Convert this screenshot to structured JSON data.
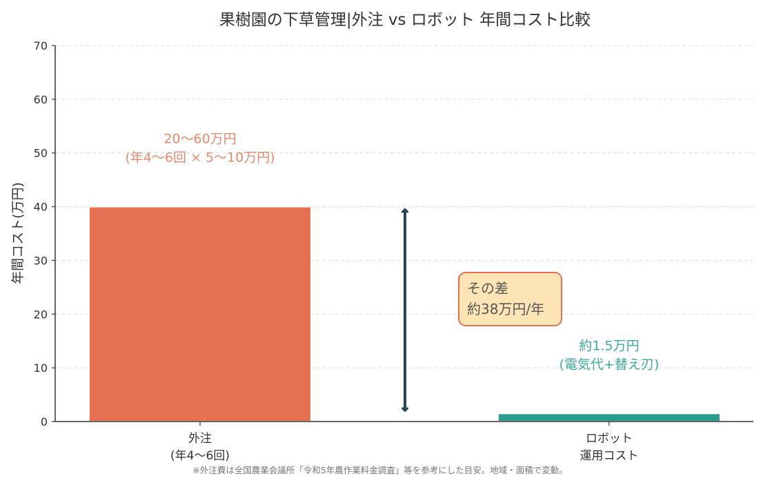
{
  "chart_data": {
    "type": "bar",
    "title": "果樹園の下草管理|外注 vs ロボット 年間コスト比較",
    "ylabel": "年間コスト(万円)",
    "xlabel": "",
    "ylim": [
      0,
      70
    ],
    "yticks": [
      0,
      10,
      20,
      30,
      40,
      50,
      60,
      70
    ],
    "grid": true,
    "categories": [
      [
        "外注",
        "(年4〜6回)"
      ],
      [
        "ロボット",
        "運用コスト"
      ]
    ],
    "values": [
      40,
      1.5
    ],
    "colors": [
      "#e57052",
      "#2a9d8f"
    ],
    "bar_annotations": [
      [
        "20〜60万円",
        "(年4〜6回 × 5〜10万円)"
      ],
      [
        "約1.5万円",
        "(電気代+替え刃)"
      ]
    ],
    "annotation_colors": [
      "#e8896c",
      "#3aaa9d"
    ],
    "difference_arrow": {
      "from": 2,
      "to": 39.5,
      "color": "#264653"
    },
    "difference_box": {
      "lines": [
        "その差",
        "約38万円/年"
      ],
      "fill": "#fde4b4",
      "border": "#e57052"
    },
    "footnote": "※外注費は全国農業会議所「令和5年農作業料金調査」等を参考にした目安。地域・面積で変動。"
  }
}
